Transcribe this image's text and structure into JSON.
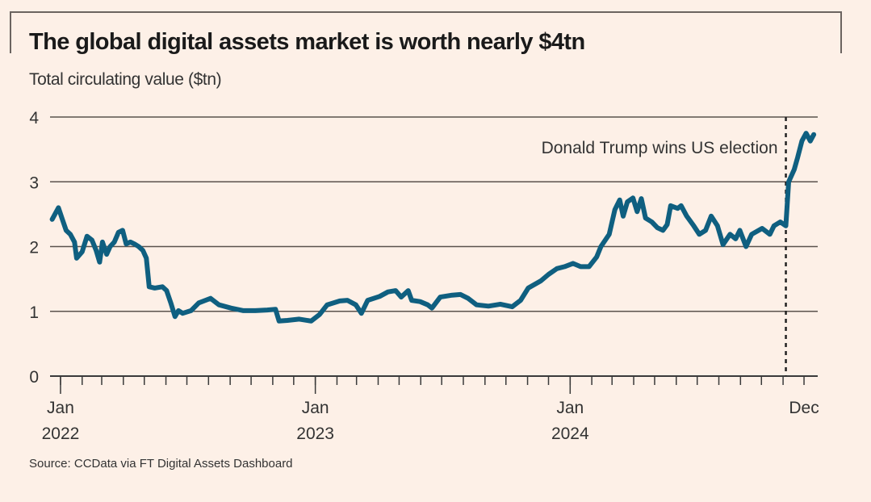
{
  "chart_data": {
    "type": "line",
    "title": "The global digital assets market is worth nearly $4tn",
    "subtitle": "Total circulating value ($tn)",
    "source": "Source: CCData via FT Digital Assets Dashboard",
    "xlabel": "",
    "ylabel": "",
    "xlim": [
      "2021-12-17",
      "2024-12-16"
    ],
    "ylim": [
      0,
      4
    ],
    "yticks": [
      0,
      1,
      2,
      3,
      4
    ],
    "xticks": [
      {
        "date": "2022-01-01",
        "label": [
          "Jan",
          "2022"
        ]
      },
      {
        "date": "2023-01-01",
        "label": [
          "Jan",
          "2023"
        ]
      },
      {
        "date": "2024-01-01",
        "label": [
          "Jan",
          "2024"
        ]
      },
      {
        "date": "2024-12-01",
        "label": [
          "Dec"
        ]
      }
    ],
    "minor_ticks": "monthly",
    "grid": true,
    "line_color": "#0f5f80",
    "annotation": {
      "date": "2024-11-05",
      "label": "Donald Trump wins US election",
      "style": "dotted vertical line"
    },
    "series": [
      {
        "x": [
          "2021-12-20",
          "2021-12-26",
          "2021-12-29",
          "2022-01-03",
          "2022-01-09",
          "2022-01-15",
          "2022-01-21",
          "2022-01-24",
          "2022-02-01",
          "2022-02-08",
          "2022-02-15",
          "2022-02-21",
          "2022-02-26",
          "2022-03-02",
          "2022-03-08",
          "2022-03-13",
          "2022-03-19",
          "2022-03-25",
          "2022-03-31",
          "2022-04-05",
          "2022-04-11",
          "2022-04-17",
          "2022-04-23",
          "2022-04-29",
          "2022-05-04",
          "2022-05-08",
          "2022-05-16",
          "2022-05-27",
          "2022-06-02",
          "2022-06-08",
          "2022-06-14",
          "2022-06-19",
          "2022-06-25",
          "2022-07-07",
          "2022-07-18",
          "2022-08-04",
          "2022-08-16",
          "2022-09-02",
          "2022-09-20",
          "2022-10-07",
          "2022-10-24",
          "2022-11-05",
          "2022-11-10",
          "2022-11-22",
          "2022-12-09",
          "2022-12-26",
          "2023-01-07",
          "2023-01-18",
          "2023-02-05",
          "2023-02-16",
          "2023-02-28",
          "2023-03-08",
          "2023-03-17",
          "2023-04-03",
          "2023-04-15",
          "2023-04-26",
          "2023-05-04",
          "2023-05-14",
          "2023-05-19",
          "2023-05-31",
          "2023-06-11",
          "2023-06-17",
          "2023-06-29",
          "2023-07-16",
          "2023-07-28",
          "2023-08-08",
          "2023-08-20",
          "2023-09-06",
          "2023-09-23",
          "2023-10-10",
          "2023-10-22",
          "2023-11-02",
          "2023-11-20",
          "2023-12-01",
          "2023-12-13",
          "2023-12-24",
          "2024-01-05",
          "2024-01-16",
          "2024-01-28",
          "2024-02-08",
          "2024-02-14",
          "2024-02-26",
          "2024-03-05",
          "2024-03-12",
          "2024-03-17",
          "2024-03-23",
          "2024-03-31",
          "2024-04-06",
          "2024-04-12",
          "2024-04-18",
          "2024-04-27",
          "2024-05-05",
          "2024-05-13",
          "2024-05-19",
          "2024-05-24",
          "2024-06-03",
          "2024-06-08",
          "2024-06-16",
          "2024-06-26",
          "2024-07-04",
          "2024-07-13",
          "2024-07-21",
          "2024-07-30",
          "2024-08-07",
          "2024-08-17",
          "2024-08-25",
          "2024-08-31",
          "2024-09-09",
          "2024-09-17",
          "2024-10-02",
          "2024-10-13",
          "2024-10-19",
          "2024-10-28",
          "2024-11-05",
          "2024-11-09",
          "2024-11-17",
          "2024-11-22",
          "2024-11-28",
          "2024-12-04",
          "2024-12-10",
          "2024-12-15"
        ],
        "y": [
          2.42,
          2.54,
          2.6,
          2.44,
          2.25,
          2.19,
          2.07,
          1.82,
          1.92,
          2.16,
          2.1,
          1.94,
          1.76,
          2.07,
          1.88,
          2.0,
          2.07,
          2.22,
          2.25,
          2.04,
          2.07,
          2.04,
          2.0,
          1.94,
          1.82,
          1.38,
          1.36,
          1.38,
          1.32,
          1.13,
          0.92,
          1.01,
          0.97,
          1.01,
          1.13,
          1.2,
          1.1,
          1.05,
          1.01,
          1.01,
          1.02,
          1.03,
          0.85,
          0.86,
          0.88,
          0.85,
          0.95,
          1.1,
          1.16,
          1.17,
          1.1,
          0.97,
          1.17,
          1.23,
          1.3,
          1.32,
          1.22,
          1.32,
          1.17,
          1.15,
          1.1,
          1.05,
          1.22,
          1.25,
          1.26,
          1.2,
          1.1,
          1.08,
          1.11,
          1.07,
          1.17,
          1.36,
          1.47,
          1.57,
          1.66,
          1.69,
          1.74,
          1.69,
          1.69,
          1.84,
          2.0,
          2.19,
          2.57,
          2.72,
          2.47,
          2.69,
          2.75,
          2.54,
          2.74,
          2.44,
          2.38,
          2.29,
          2.25,
          2.34,
          2.63,
          2.59,
          2.63,
          2.47,
          2.32,
          2.19,
          2.25,
          2.47,
          2.32,
          2.03,
          2.19,
          2.12,
          2.25,
          2.0,
          2.19,
          2.28,
          2.19,
          2.32,
          2.38,
          2.32,
          3.0,
          3.19,
          3.38,
          3.63,
          3.75,
          3.63,
          3.73
        ]
      }
    ]
  }
}
